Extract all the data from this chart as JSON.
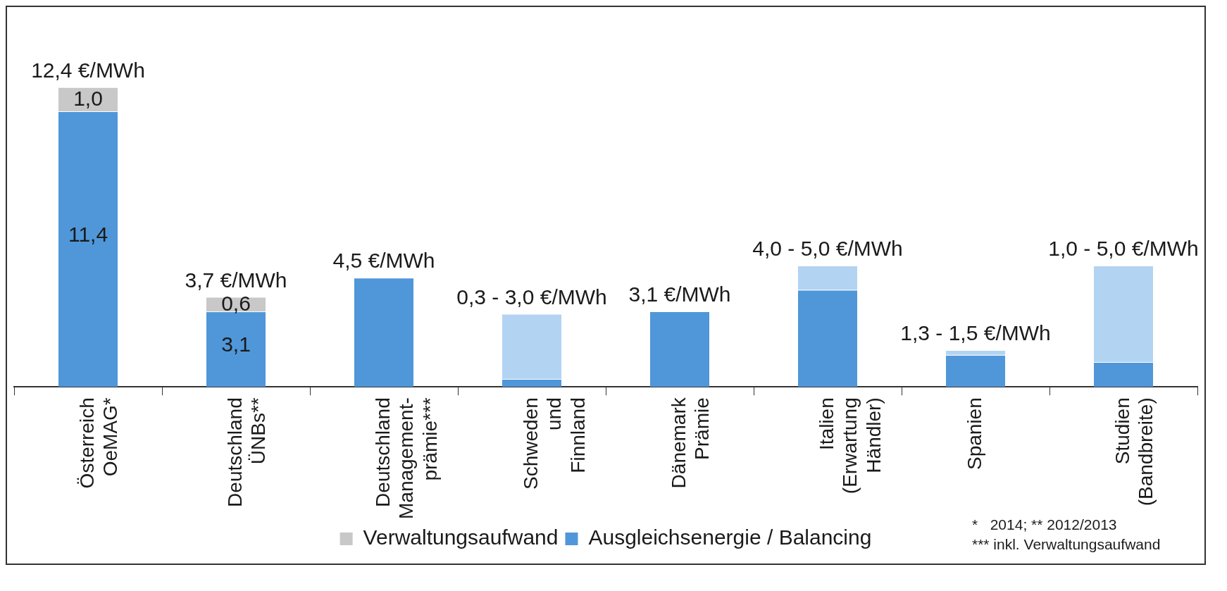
{
  "chart_data": {
    "type": "bar",
    "stacked": true,
    "categories": [
      "Österreich\nOeMAG*",
      "Deutschland\nÜNBs**",
      "Deutschland\nManagement-\nprämie***",
      "Schweden\nund\nFinnland",
      "Dänemark\nPrämie",
      "Italien\n(Erwartung\nHändler)",
      "Spanien",
      "Studien\n(Bandbreite)"
    ],
    "series": [
      {
        "name": "Ausgleichsenergie / Balancing",
        "color": "#4f97d9",
        "values": [
          11.4,
          3.1,
          4.5,
          0.3,
          3.1,
          4.0,
          1.3,
          1.0
        ],
        "value_labels": [
          "11,4",
          "3,1",
          null,
          null,
          null,
          null,
          null,
          null
        ]
      },
      {
        "name": "Verwaltungsaufwand",
        "color": "#c8c8c8",
        "values": [
          1.0,
          0.6,
          null,
          null,
          null,
          null,
          null,
          null
        ],
        "value_labels": [
          "1,0",
          "0,6",
          null,
          null,
          null,
          null,
          null,
          null
        ]
      },
      {
        "color": "#b3d3f2",
        "values": [
          null,
          null,
          null,
          2.7,
          null,
          1.0,
          0.2,
          4.0
        ]
      }
    ],
    "totals": [
      "12,4 €/MWh",
      "3,7 €/MWh",
      "4,5 €/MWh",
      "0,3 - 3,0 €/MWh",
      "3,1 €/MWh",
      "4,0 - 5,0 €/MWh",
      "1,3 - 1,5 €/MWh",
      "1,0 - 5,0 €/MWh"
    ],
    "tick_labels": "x",
    "grid": false,
    "legend": "bottom",
    "annotations": [
      "*   2014; ** 2012/2013",
      "*** inkl. Verwaltungsaufwand"
    ]
  }
}
